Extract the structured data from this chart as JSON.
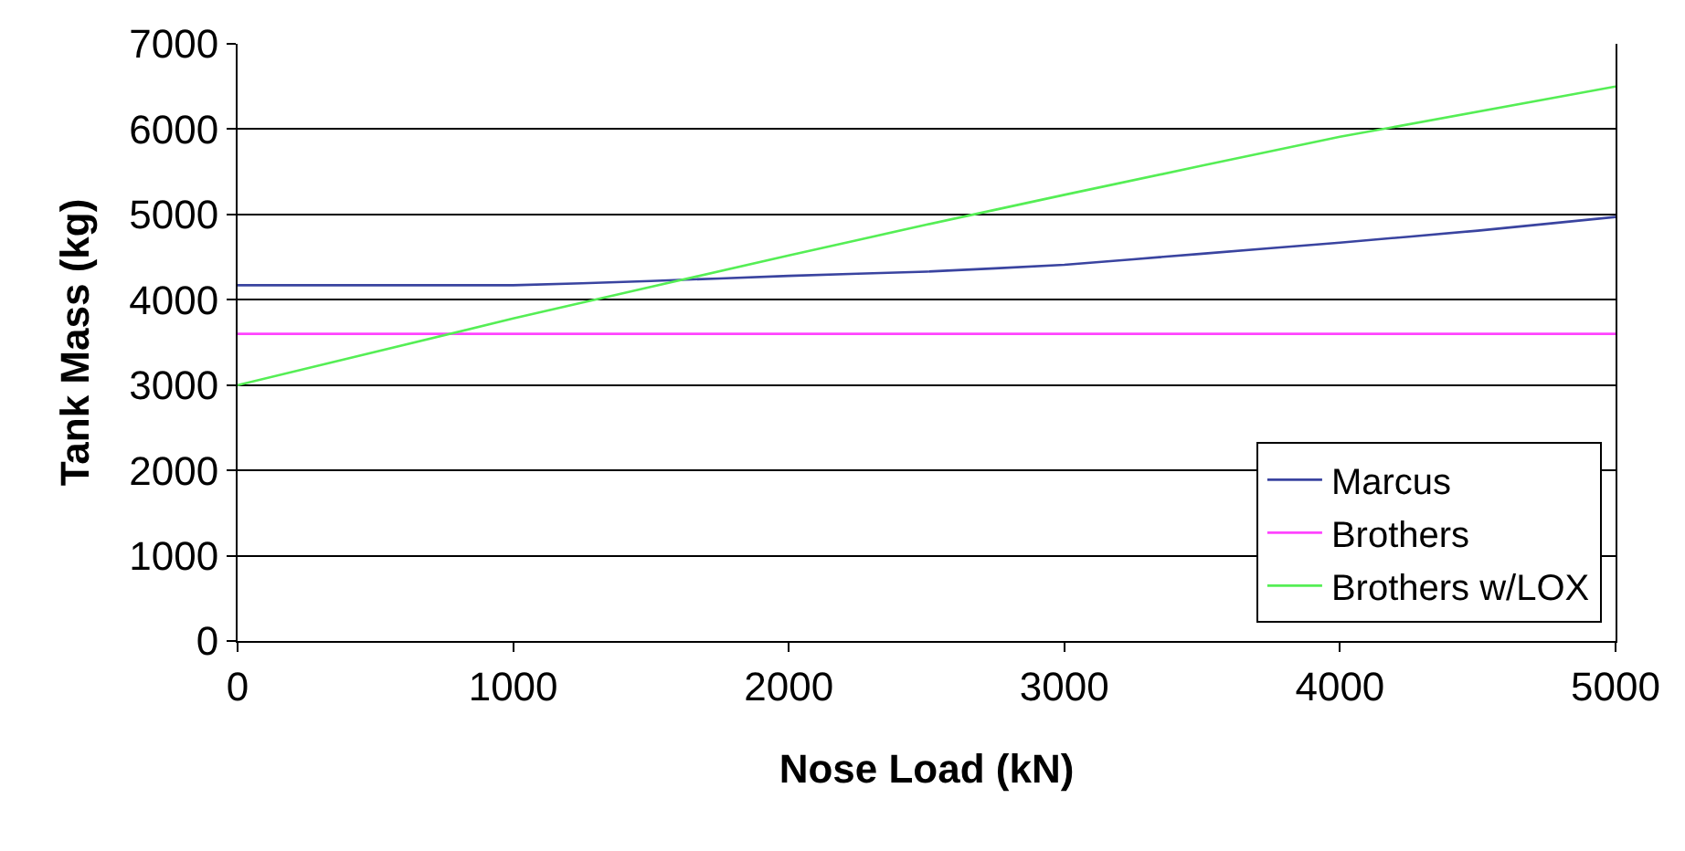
{
  "chart_data": {
    "type": "line",
    "xlabel": "Nose Load (kN)",
    "ylabel": "Tank Mass (kg)",
    "xlim": [
      0,
      5000
    ],
    "xticks": [
      0,
      1000,
      2000,
      3000,
      4000,
      5000
    ],
    "ylim": [
      0,
      7000
    ],
    "yticks": [
      0,
      1000,
      2000,
      3000,
      4000,
      5000,
      6000,
      7000
    ],
    "grid": "y",
    "legend": "bottom right",
    "marker": "none",
    "line_style": "solid",
    "series": [
      {
        "name": "Marcus",
        "color": "#3a44a0",
        "x": [
          0,
          1000,
          1500,
          2000,
          2500,
          3000,
          3500,
          4000,
          4500,
          5000
        ],
        "values": [
          4170,
          4170,
          4220,
          4280,
          4330,
          4410,
          4540,
          4670,
          4810,
          4970
        ]
      },
      {
        "name": "Brothers",
        "color": "#ff44ff",
        "x": [
          0,
          5000
        ],
        "values": [
          3600,
          3600
        ]
      },
      {
        "name": "Brothers w/LOX",
        "color": "#55ee55",
        "x": [
          0,
          1000,
          2000,
          2500,
          3000,
          4000,
          5000
        ],
        "values": [
          3000,
          3780,
          4520,
          4880,
          5230,
          5910,
          6500
        ]
      }
    ]
  }
}
